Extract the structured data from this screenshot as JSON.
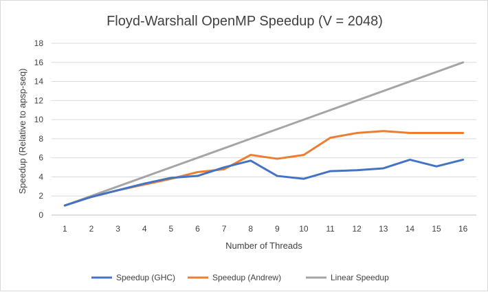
{
  "chart_data": {
    "type": "line",
    "title": "Floyd-Warshall OpenMP Speedup (V = 2048)",
    "xlabel": "Number of Threads",
    "ylabel": "Speedup (Relative to apsp-seq)",
    "x": [
      1,
      2,
      3,
      4,
      5,
      6,
      7,
      8,
      9,
      10,
      11,
      12,
      13,
      14,
      15,
      16
    ],
    "ylim": [
      0,
      18
    ],
    "yticks": [
      0,
      2,
      4,
      6,
      8,
      10,
      12,
      14,
      16,
      18
    ],
    "grid": true,
    "legend_position": "bottom",
    "series": [
      {
        "name": "Speedup (GHC)",
        "color": "#4472c4",
        "values": [
          1.0,
          1.9,
          2.6,
          3.3,
          3.9,
          4.1,
          5.0,
          5.7,
          4.1,
          3.8,
          4.6,
          4.7,
          4.9,
          5.8,
          5.1,
          5.8
        ]
      },
      {
        "name": "Speedup (Andrew)",
        "color": "#ed7d31",
        "values": [
          1.0,
          1.9,
          2.6,
          3.2,
          3.8,
          4.5,
          4.8,
          6.3,
          5.9,
          6.3,
          8.1,
          8.6,
          8.8,
          8.6,
          8.6,
          8.6
        ]
      },
      {
        "name": "Linear Speedup",
        "color": "#a5a5a5",
        "values": [
          1,
          2,
          3,
          4,
          5,
          6,
          7,
          8,
          9,
          10,
          11,
          12,
          13,
          14,
          15,
          16
        ]
      }
    ]
  }
}
